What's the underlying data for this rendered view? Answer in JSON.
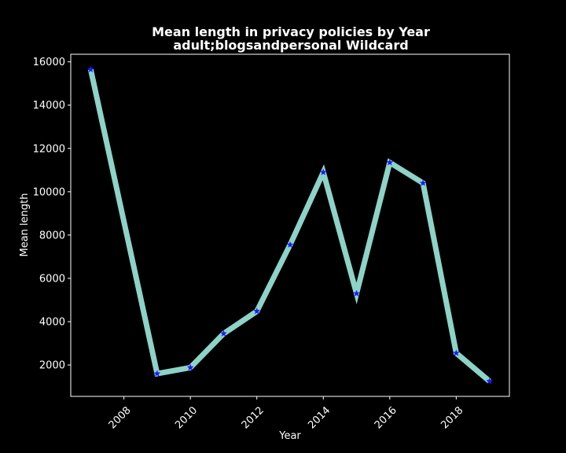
{
  "chart_data": {
    "type": "line",
    "title": "Mean length in privacy policies by Year",
    "subtitle": "adult;blogsandpersonal Wildcard",
    "xlabel": "Year",
    "ylabel": "Mean length",
    "xlim": [
      2006.4,
      2019.6
    ],
    "ylim": [
      550,
      16350
    ],
    "xticks": [
      2008,
      2010,
      2012,
      2014,
      2016,
      2018
    ],
    "yticks": [
      2000,
      4000,
      6000,
      8000,
      10000,
      12000,
      14000,
      16000
    ],
    "x": [
      2007,
      2009,
      2010,
      2011,
      2012,
      2013,
      2014,
      2015,
      2016,
      2017,
      2018,
      2019
    ],
    "series": [
      {
        "values": [
          15650,
          1600,
          1880,
          3450,
          4480,
          7550,
          10900,
          5300,
          11350,
          10400,
          2550,
          1250
        ],
        "line_color": "#8dd3c7",
        "marker_color": "#1a1aff",
        "marker": "star"
      }
    ],
    "grid": false,
    "legend": "none",
    "background": "#000000",
    "foreground": "#ffffff"
  }
}
